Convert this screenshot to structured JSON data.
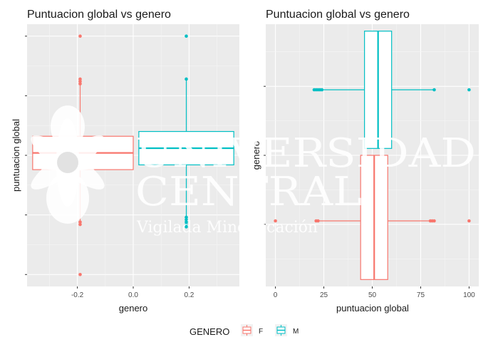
{
  "chart_data": [
    {
      "type": "box",
      "title": "Puntuacion global vs genero",
      "xlabel": "genero",
      "ylabel": "puntuacion global",
      "x_ticks": [
        -0.2,
        0.0,
        0.2
      ],
      "x_tick_labels": [
        "-0.2",
        "0.0",
        "0.2"
      ],
      "xlim": [
        -0.38,
        0.38
      ],
      "ylim": [
        -5,
        105
      ],
      "y_tick_labels_shown": false,
      "grid": true,
      "series": [
        {
          "name": "F",
          "color": "#F8766D",
          "box_x": [
            -0.36,
            0.0
          ],
          "outlier_x": -0.19,
          "min": 22,
          "q1": 44,
          "median": 51,
          "q3": 58,
          "max": 80,
          "outliers": [
            0,
            21,
            22,
            80,
            81,
            82,
            100
          ]
        },
        {
          "name": "M",
          "color": "#00BFC4",
          "box_x": [
            0.02,
            0.36
          ],
          "outlier_x": 0.19,
          "min": 24,
          "q1": 46,
          "median": 53,
          "q3": 60,
          "max": 82,
          "outliers": [
            20,
            21,
            22,
            23,
            24,
            82,
            100
          ]
        }
      ]
    },
    {
      "type": "box",
      "orientation": "horizontal",
      "title": "Puntuacion global vs genero",
      "xlabel": "puntuacion global",
      "ylabel": "genero",
      "x_ticks": [
        0,
        25,
        50,
        75,
        100
      ],
      "x_tick_labels": [
        "0",
        "25",
        "50",
        "75",
        "100"
      ],
      "xlim": [
        -5,
        105
      ],
      "ylim": [
        -0.38,
        0.38
      ],
      "y_tick_labels_shown": false,
      "grid": true,
      "series": [
        {
          "name": "F",
          "color": "#F8766D",
          "box_y": [
            -0.36,
            0.0
          ],
          "outlier_y": -0.19,
          "min": 22,
          "q1": 44,
          "median": 51,
          "q3": 58,
          "max": 80,
          "outliers": [
            0,
            21,
            22,
            80,
            81,
            82,
            100
          ]
        },
        {
          "name": "M",
          "color": "#00BFC4",
          "box_y": [
            0.02,
            0.36
          ],
          "outlier_y": 0.19,
          "min": 24,
          "q1": 46,
          "median": 53,
          "q3": 60,
          "max": 82,
          "outliers": [
            20,
            21,
            22,
            23,
            24,
            82,
            100
          ]
        }
      ]
    }
  ],
  "legend": {
    "title": "GENERO",
    "position": "bottom",
    "items": [
      {
        "label": "F",
        "color": "#F8766D"
      },
      {
        "label": "M",
        "color": "#00BFC4"
      }
    ]
  },
  "watermark": {
    "line1": "UNIVERSIDAD",
    "line2": "CENTRAL",
    "line3": "Vigilada Mineducación",
    "icon": "lotus-flower-icon"
  }
}
